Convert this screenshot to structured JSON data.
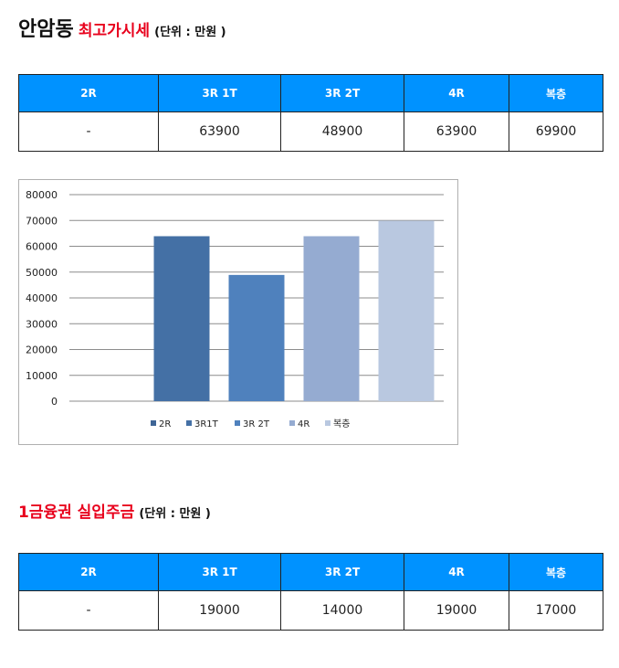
{
  "section1": {
    "title_main": "안암동",
    "title_red": "최고가시세",
    "title_unit": "(단위 : 만원 )",
    "headers": [
      "2R",
      "3R 1T",
      "3R 2T",
      "4R",
      "복층"
    ],
    "values": [
      "-",
      "63900",
      "48900",
      "63900",
      "69900"
    ]
  },
  "chart_data": {
    "type": "bar",
    "categories": [
      "2R",
      "3R1T",
      "3R 2T",
      "4R",
      "복층"
    ],
    "values": [
      0,
      63900,
      48900,
      63900,
      69900
    ],
    "colors": [
      "#3e6596",
      "#4470a5",
      "#4f81bd",
      "#95abd1",
      "#b9c8e0"
    ],
    "ylim": [
      0,
      80000
    ],
    "yticks": [
      "80000",
      "70000",
      "60000",
      "50000",
      "40000",
      "30000",
      "20000",
      "10000",
      "0"
    ],
    "grid": true,
    "legend": "bottom"
  },
  "section2": {
    "title_red": "1금융권 실입주금",
    "title_unit": "(단위 : 만원 )",
    "headers": [
      "2R",
      "3R 1T",
      "3R 2T",
      "4R",
      "복층"
    ],
    "values": [
      "-",
      "19000",
      "14000",
      "19000",
      "17000"
    ]
  }
}
